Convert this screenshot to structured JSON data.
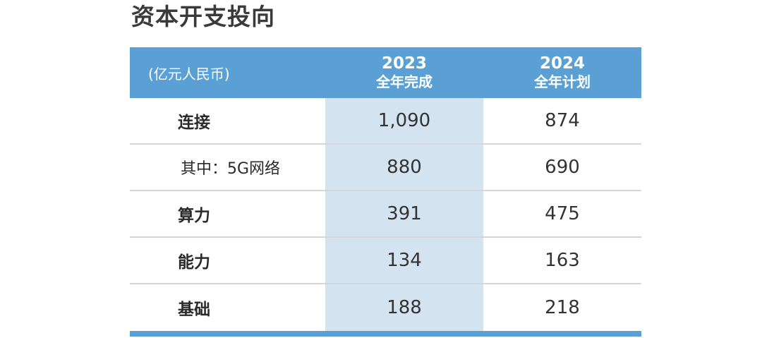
{
  "title": "资本开支投向",
  "table": {
    "unit_label": "(亿元人民币)",
    "columns": [
      {
        "year": "2023",
        "label": "全年完成"
      },
      {
        "year": "2024",
        "label": "全年计划"
      }
    ],
    "rows": [
      {
        "label": "连接",
        "v2023": "1,090",
        "v2024": "874"
      },
      {
        "label": "其中：5G网络",
        "v2023": "880",
        "v2024": "690"
      },
      {
        "label": "算力",
        "v2023": "391",
        "v2024": "475"
      },
      {
        "label": "能力",
        "v2023": "134",
        "v2024": "163"
      },
      {
        "label": "基础",
        "v2023": "188",
        "v2024": "218"
      }
    ]
  },
  "colors": {
    "header_blue": "#5aa0d4",
    "shaded_column": "#d3e4f0",
    "row_divider": "#d6d6d6"
  }
}
